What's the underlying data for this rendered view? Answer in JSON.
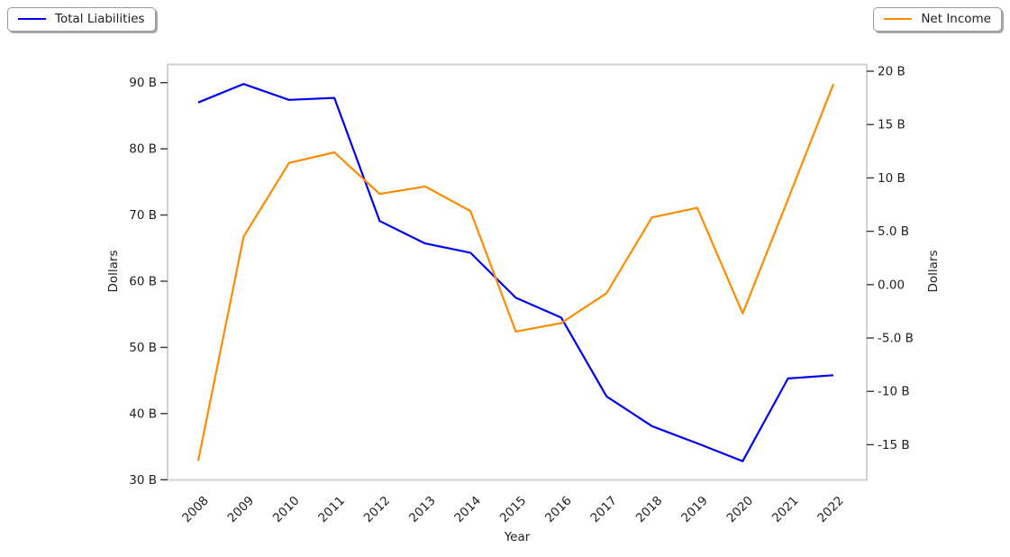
{
  "chart_data": {
    "type": "line",
    "title": "",
    "xlabel": "Year",
    "x": [
      "2008",
      "2009",
      "2010",
      "2011",
      "2012",
      "2013",
      "2014",
      "2015",
      "2016",
      "2017",
      "2018",
      "2019",
      "2020",
      "2021",
      "2022"
    ],
    "series": [
      {
        "name": "Total Liabilities",
        "axis": "left",
        "color": "#0000f5",
        "unit": "billions of dollars",
        "values": [
          87.0,
          89.8,
          87.4,
          87.7,
          69.1,
          65.7,
          64.3,
          57.5,
          54.5,
          42.6,
          38.1,
          35.5,
          32.8,
          45.3,
          45.8
        ]
      },
      {
        "name": "Net Income",
        "axis": "right",
        "color": "#ff8c00",
        "unit": "billions of dollars",
        "values": [
          -16.5,
          4.5,
          11.4,
          12.4,
          8.5,
          9.2,
          6.9,
          -4.4,
          -3.6,
          -0.8,
          6.3,
          7.2,
          -2.7,
          8.0,
          18.8
        ]
      }
    ],
    "left_axis": {
      "label": "Dollars",
      "range": [
        30,
        90
      ],
      "ticks": [
        {
          "value": 90,
          "label": "90 B"
        },
        {
          "value": 80,
          "label": "80 B"
        },
        {
          "value": 70,
          "label": "70 B"
        },
        {
          "value": 60,
          "label": "60 B"
        },
        {
          "value": 50,
          "label": "50 B"
        },
        {
          "value": 40,
          "label": "40 B"
        },
        {
          "value": 30,
          "label": "30 B"
        }
      ]
    },
    "right_axis": {
      "label": "Dollars",
      "range": [
        -15,
        20
      ],
      "ticks": [
        {
          "value": 20,
          "label": "20 B"
        },
        {
          "value": 15,
          "label": "15 B"
        },
        {
          "value": 10,
          "label": "10 B"
        },
        {
          "value": 5,
          "label": "5.0 B"
        },
        {
          "value": 0,
          "label": "0.00"
        },
        {
          "value": -5,
          "label": "-5.0 B"
        },
        {
          "value": -10,
          "label": "-10 B"
        },
        {
          "value": -15,
          "label": "-15 B"
        }
      ]
    },
    "legend": [
      {
        "label": "Total Liabilities",
        "position": "top-left"
      },
      {
        "label": "Net Income",
        "position": "top-right"
      }
    ],
    "grid": false
  }
}
